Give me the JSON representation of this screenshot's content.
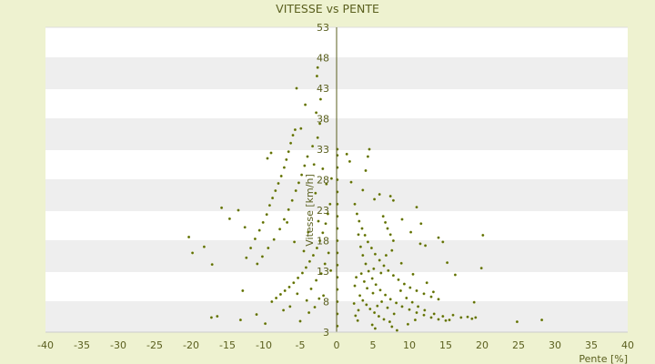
{
  "chart_data": {
    "type": "scatter",
    "title": "VITESSE vs PENTE",
    "xlabel": "Pente [%]",
    "ylabel": "Vitesse [km/h]",
    "xlim": [
      -40,
      40
    ],
    "ylim": [
      3,
      53
    ],
    "x_ticks": [
      "-40",
      "-35",
      "-30",
      "-25",
      "-20",
      "-15",
      "-10",
      "-5",
      "0",
      "5",
      "10",
      "15",
      "20",
      "25",
      "30",
      "35",
      "40"
    ],
    "y_ticks": [
      "53",
      "48",
      "43",
      "38",
      "33",
      "28",
      "23",
      "18",
      "13",
      "8",
      "3"
    ],
    "grid": "horizontal bands",
    "point_color": "#5a6a00",
    "band_colors": [
      "#ffffff",
      "#eeeeee"
    ],
    "series": [
      {
        "points": [
          [
            -17.2,
            5.4
          ],
          [
            -16.4,
            5.6
          ],
          [
            -13.2,
            5.0
          ],
          [
            -12.9,
            9.8
          ],
          [
            -12.4,
            15.2
          ],
          [
            -11.8,
            16.8
          ],
          [
            -11.2,
            18.3
          ],
          [
            -10.6,
            19.7
          ],
          [
            -10.1,
            21.0
          ],
          [
            -9.6,
            22.3
          ],
          [
            -9.2,
            23.8
          ],
          [
            -8.8,
            25.0
          ],
          [
            -8.4,
            26.2
          ],
          [
            -8.0,
            27.4
          ],
          [
            -7.6,
            28.6
          ],
          [
            -7.2,
            30.0
          ],
          [
            -6.9,
            31.3
          ],
          [
            -6.6,
            32.6
          ],
          [
            -6.3,
            34.0
          ],
          [
            -6.0,
            35.3
          ],
          [
            -5.7,
            36.2
          ],
          [
            -10.9,
            14.2
          ],
          [
            -10.2,
            15.4
          ],
          [
            -9.4,
            16.8
          ],
          [
            -8.6,
            18.2
          ],
          [
            -7.8,
            19.9
          ],
          [
            -7.2,
            21.5
          ],
          [
            -6.6,
            23.1
          ],
          [
            -6.1,
            24.6
          ],
          [
            -5.6,
            26.2
          ],
          [
            -5.2,
            27.5
          ],
          [
            -4.8,
            28.8
          ],
          [
            -4.4,
            30.3
          ],
          [
            -4.0,
            31.8
          ],
          [
            -8.9,
            8.0
          ],
          [
            -8.3,
            8.6
          ],
          [
            -7.7,
            9.2
          ],
          [
            -7.1,
            9.8
          ],
          [
            -6.5,
            10.4
          ],
          [
            -5.9,
            11.1
          ],
          [
            -5.3,
            11.9
          ],
          [
            -4.7,
            12.7
          ],
          [
            -4.2,
            13.6
          ],
          [
            -3.7,
            14.6
          ],
          [
            -3.2,
            15.6
          ],
          [
            -2.7,
            16.8
          ],
          [
            -2.3,
            18.0
          ],
          [
            -1.9,
            19.3
          ],
          [
            -1.5,
            20.8
          ],
          [
            -1.2,
            22.4
          ],
          [
            -0.9,
            24.0
          ],
          [
            -5.0,
            4.8
          ],
          [
            -3.8,
            6.2
          ],
          [
            -3.0,
            7.1
          ],
          [
            -2.4,
            8.5
          ],
          [
            -1.8,
            9.0
          ],
          [
            -3.5,
            10.1
          ],
          [
            -2.8,
            11.5
          ],
          [
            -4.5,
            16.3
          ],
          [
            -5.8,
            17.8
          ],
          [
            -3.9,
            19.4
          ],
          [
            -2.5,
            21.2
          ],
          [
            -6.4,
            7.2
          ],
          [
            -7.3,
            6.6
          ],
          [
            -9.8,
            4.4
          ],
          [
            -11.0,
            5.9
          ],
          [
            -5.4,
            9.3
          ],
          [
            -4.1,
            8.2
          ],
          [
            -2.1,
            12.6
          ],
          [
            -1.6,
            14.2
          ],
          [
            -0.8,
            13.1
          ],
          [
            -1.1,
            16.0
          ],
          [
            -2.9,
            25.8
          ],
          [
            -1.4,
            27.3
          ],
          [
            -3.3,
            33.5
          ],
          [
            -2.6,
            34.9
          ],
          [
            -2.3,
            37.2
          ],
          [
            -2.8,
            39.0
          ],
          [
            -2.2,
            41.2
          ],
          [
            -2.7,
            45.0
          ],
          [
            -2.6,
            46.4
          ],
          [
            -5.5,
            43.0
          ],
          [
            -4.3,
            40.3
          ],
          [
            -9.5,
            31.5
          ],
          [
            -9.0,
            32.4
          ],
          [
            -20.3,
            18.6
          ],
          [
            -19.8,
            16.0
          ],
          [
            -17.1,
            14.1
          ],
          [
            -15.8,
            23.4
          ],
          [
            -13.5,
            23.0
          ],
          [
            -12.6,
            20.2
          ],
          [
            -14.7,
            21.6
          ],
          [
            -18.2,
            17.0
          ],
          [
            -3.1,
            30.5
          ],
          [
            -1.9,
            29.8
          ],
          [
            -0.7,
            28.2
          ],
          [
            -4.9,
            36.4
          ],
          [
            -6.8,
            21.0
          ],
          [
            0.1,
            4.0
          ],
          [
            0.1,
            6.0
          ],
          [
            0.1,
            8.0
          ],
          [
            0.1,
            10.0
          ],
          [
            0.1,
            12.0
          ],
          [
            0.1,
            14.0
          ],
          [
            0.1,
            16.0
          ],
          [
            0.1,
            18.0
          ],
          [
            0.1,
            20.0
          ],
          [
            0.1,
            22.0
          ],
          [
            0.1,
            24.0
          ],
          [
            0.1,
            26.0
          ],
          [
            0.1,
            28.0
          ],
          [
            0.1,
            30.0
          ],
          [
            0.1,
            32.0
          ],
          [
            0.1,
            33.0
          ],
          [
            1.4,
            32.2
          ],
          [
            1.8,
            31.0
          ],
          [
            2.0,
            27.6
          ],
          [
            2.5,
            24.0
          ],
          [
            2.8,
            22.4
          ],
          [
            3.1,
            21.2
          ],
          [
            3.5,
            20.0
          ],
          [
            3.9,
            18.9
          ],
          [
            4.3,
            17.8
          ],
          [
            4.8,
            16.8
          ],
          [
            5.3,
            15.8
          ],
          [
            5.9,
            14.8
          ],
          [
            6.5,
            13.9
          ],
          [
            7.1,
            13.1
          ],
          [
            7.8,
            12.3
          ],
          [
            8.5,
            11.6
          ],
          [
            9.3,
            10.9
          ],
          [
            10.1,
            10.3
          ],
          [
            11.0,
            9.8
          ],
          [
            12.0,
            9.3
          ],
          [
            13.0,
            8.8
          ],
          [
            14.0,
            8.4
          ],
          [
            3.0,
            19.0
          ],
          [
            3.3,
            17.0
          ],
          [
            3.6,
            15.6
          ],
          [
            4.0,
            14.2
          ],
          [
            4.4,
            13.0
          ],
          [
            4.9,
            11.8
          ],
          [
            5.4,
            10.8
          ],
          [
            6.0,
            9.9
          ],
          [
            6.7,
            9.1
          ],
          [
            7.4,
            8.4
          ],
          [
            8.2,
            7.8
          ],
          [
            9.0,
            7.2
          ],
          [
            10.0,
            6.7
          ],
          [
            11.0,
            6.2
          ],
          [
            12.0,
            5.8
          ],
          [
            13.0,
            5.4
          ],
          [
            14.0,
            5.1
          ],
          [
            15.0,
            4.9
          ],
          [
            6.4,
            22.0
          ],
          [
            6.7,
            21.0
          ],
          [
            7.0,
            20.0
          ],
          [
            7.4,
            19.0
          ],
          [
            7.8,
            18.0
          ],
          [
            3.2,
            9.0
          ],
          [
            3.6,
            8.2
          ],
          [
            4.1,
            7.5
          ],
          [
            4.6,
            6.8
          ],
          [
            5.2,
            6.2
          ],
          [
            5.8,
            5.6
          ],
          [
            6.5,
            5.1
          ],
          [
            7.3,
            4.7
          ],
          [
            2.7,
            12.0
          ],
          [
            3.4,
            12.6
          ],
          [
            4.2,
            10.2
          ],
          [
            5.0,
            9.4
          ],
          [
            5.6,
            7.3
          ],
          [
            6.2,
            8.0
          ],
          [
            7.0,
            7.0
          ],
          [
            7.9,
            6.0
          ],
          [
            8.8,
            9.8
          ],
          [
            9.6,
            8.6
          ],
          [
            10.4,
            7.9
          ],
          [
            11.2,
            7.2
          ],
          [
            12.1,
            6.6
          ],
          [
            13.4,
            6.0
          ],
          [
            14.6,
            5.6
          ],
          [
            4.5,
            33.0
          ],
          [
            4.3,
            31.8
          ],
          [
            4.0,
            29.5
          ],
          [
            3.6,
            26.3
          ],
          [
            5.2,
            24.8
          ],
          [
            5.9,
            25.6
          ],
          [
            7.4,
            25.3
          ],
          [
            7.8,
            24.6
          ],
          [
            11.0,
            23.5
          ],
          [
            11.6,
            20.8
          ],
          [
            9.0,
            21.5
          ],
          [
            10.2,
            19.4
          ],
          [
            11.5,
            17.5
          ],
          [
            12.2,
            17.2
          ],
          [
            14.0,
            18.5
          ],
          [
            14.6,
            17.8
          ],
          [
            15.2,
            14.4
          ],
          [
            16.3,
            12.4
          ],
          [
            18.9,
            7.9
          ],
          [
            20.1,
            18.9
          ],
          [
            19.9,
            13.5
          ],
          [
            24.8,
            4.7
          ],
          [
            28.2,
            5.0
          ],
          [
            17.1,
            5.4
          ],
          [
            18.0,
            5.5
          ],
          [
            18.6,
            5.2
          ],
          [
            19.1,
            5.4
          ],
          [
            16.0,
            5.8
          ],
          [
            15.5,
            5.0
          ],
          [
            9.8,
            4.3
          ],
          [
            10.8,
            5.0
          ],
          [
            7.6,
            3.9
          ],
          [
            8.3,
            3.3
          ],
          [
            4.9,
            4.2
          ],
          [
            5.3,
            3.6
          ],
          [
            2.9,
            4.9
          ],
          [
            2.6,
            5.7
          ],
          [
            3.0,
            6.6
          ],
          [
            2.4,
            7.7
          ],
          [
            6.8,
            15.6
          ],
          [
            7.6,
            16.4
          ],
          [
            8.9,
            14.3
          ],
          [
            6.1,
            12.7
          ],
          [
            5.1,
            13.4
          ],
          [
            3.8,
            11.3
          ],
          [
            2.5,
            10.6
          ],
          [
            12.4,
            11.1
          ],
          [
            13.3,
            9.6
          ],
          [
            10.5,
            12.5
          ]
        ]
      }
    ]
  }
}
